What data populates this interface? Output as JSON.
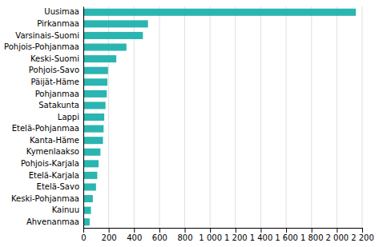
{
  "chart_data": {
    "type": "bar",
    "orientation": "horizontal",
    "categories": [
      "Ahvenanmaa",
      "Kainuu",
      "Keski-Pohjanmaa",
      "Etelä-Savo",
      "Etelä-Karjala",
      "Pohjois-Karjala",
      "Kymenlaakso",
      "Kanta-Häme",
      "Etelä-Pohjanmaa",
      "Lappi",
      "Satakunta",
      "Pohjanmaa",
      "Päijät-Häme",
      "Pohjois-Savo",
      "Keski-Suomi",
      "Pohjois-Pohjanmaa",
      "Varsinais-Suomi",
      "Pirkanmaa",
      "Uusimaa"
    ],
    "values": [
      50,
      60,
      75,
      100,
      110,
      120,
      135,
      155,
      160,
      165,
      175,
      185,
      190,
      195,
      260,
      340,
      470,
      510,
      2150
    ],
    "color": "#2ab5b0",
    "xlim": [
      0,
      2200
    ],
    "xticks": [
      0,
      200,
      400,
      600,
      800,
      {
        "value": 1000,
        "label": "1 000"
      },
      {
        "value": 1200,
        "label": "1 200"
      },
      {
        "value": 1400,
        "label": "1 400"
      },
      {
        "value": 1600,
        "label": "1 600"
      },
      {
        "value": 1800,
        "label": "1 800"
      },
      {
        "value": 2000,
        "label": "2 000"
      },
      {
        "value": 2200,
        "label": "2 200"
      }
    ],
    "grid": true
  }
}
